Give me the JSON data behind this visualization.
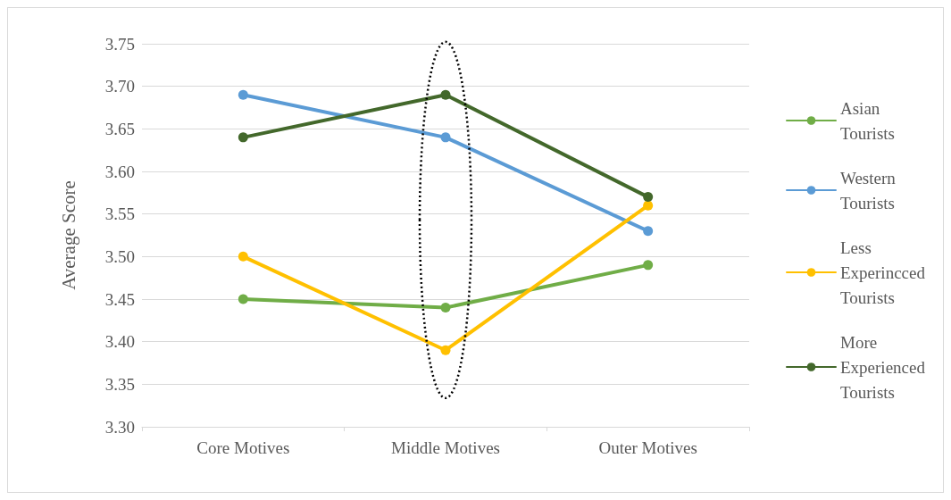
{
  "chart_data": {
    "type": "line",
    "ylabel": "Average Score",
    "categories": [
      "Core Motives",
      "Middle Motives",
      "Outer Motives"
    ],
    "series": [
      {
        "name": "Asian Tourists",
        "color": "#70ad47",
        "values": [
          3.45,
          3.44,
          3.49
        ]
      },
      {
        "name": "Western Tourists",
        "color": "#5b9bd5",
        "values": [
          3.69,
          3.64,
          3.53
        ]
      },
      {
        "name": "Less Experincced Tourists",
        "color": "#ffc000",
        "values": [
          3.5,
          3.39,
          3.56
        ]
      },
      {
        "name": "More Experienced Tourists",
        "color": "#43682b",
        "values": [
          3.64,
          3.69,
          3.57
        ]
      }
    ],
    "ylim": [
      3.3,
      3.75
    ],
    "yticks": [
      {
        "value": 3.3,
        "label": "3.30"
      },
      {
        "value": 3.35,
        "label": "3.35"
      },
      {
        "value": 3.4,
        "label": "3.40"
      },
      {
        "value": 3.45,
        "label": "3.45"
      },
      {
        "value": 3.5,
        "label": "3.50"
      },
      {
        "value": 3.55,
        "label": "3.55"
      },
      {
        "value": 3.6,
        "label": "3.60"
      },
      {
        "value": 3.65,
        "label": "3.65"
      },
      {
        "value": 3.7,
        "label": "3.70"
      },
      {
        "value": 3.75,
        "label": "3.75"
      }
    ],
    "grid": "y",
    "legend": "right",
    "marker": "circle",
    "line_style": "solid"
  }
}
